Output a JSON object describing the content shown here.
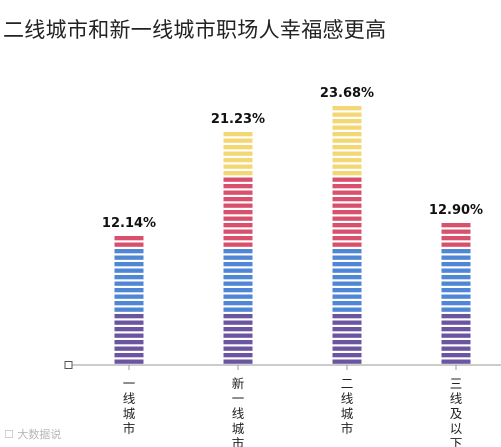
{
  "chart_data": {
    "type": "bar",
    "title": "二线城市和新一线城市职场人幸福感更高",
    "categories": [
      "一线城市",
      "新一线城市",
      "二线城市",
      "三线及以下"
    ],
    "values": [
      12.14,
      21.23,
      23.68,
      12.9
    ],
    "value_labels": [
      "12.14%",
      "21.23%",
      "23.68%",
      "12.90%"
    ],
    "ylim": [
      0,
      26
    ],
    "grid": false,
    "legend": "none",
    "colors": {
      "purple": "#6b54a0",
      "blue": "#4f86d6",
      "pink": "#d9506c",
      "yellow": "#f3d774",
      "axis": "#999999"
    }
  },
  "watermark": "大数据说"
}
